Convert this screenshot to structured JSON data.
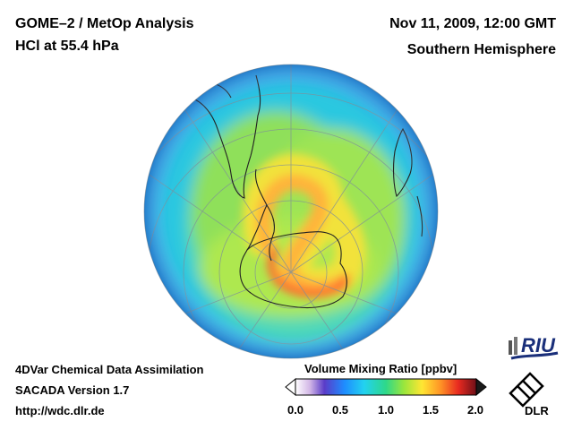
{
  "header": {
    "title_line1": "GOME–2 / MetOp Analysis",
    "title_line2": "HCl at 55.4 hPa",
    "datetime": "Nov 11, 2009, 12:00 GMT",
    "region": "Southern Hemisphere"
  },
  "footer": {
    "line1": "4DVar Chemical Data Assimilation",
    "line2": "SACADA Version 1.7",
    "line3": "http://wdc.dlr.de"
  },
  "colorbar": {
    "title": "Volume Mixing Ratio [ppbv]",
    "ticks": [
      "0.0",
      "0.5",
      "1.0",
      "1.5",
      "2.0"
    ],
    "range": [
      0.0,
      2.0
    ]
  },
  "logos": {
    "riu": "RIU",
    "dlr": "DLR"
  },
  "colors": {
    "low": "#1e78ff",
    "mid": "#2ad6c8",
    "mid_high": "#7fe05a",
    "high": "#ffe033",
    "peak": "#ff4a2a"
  }
}
